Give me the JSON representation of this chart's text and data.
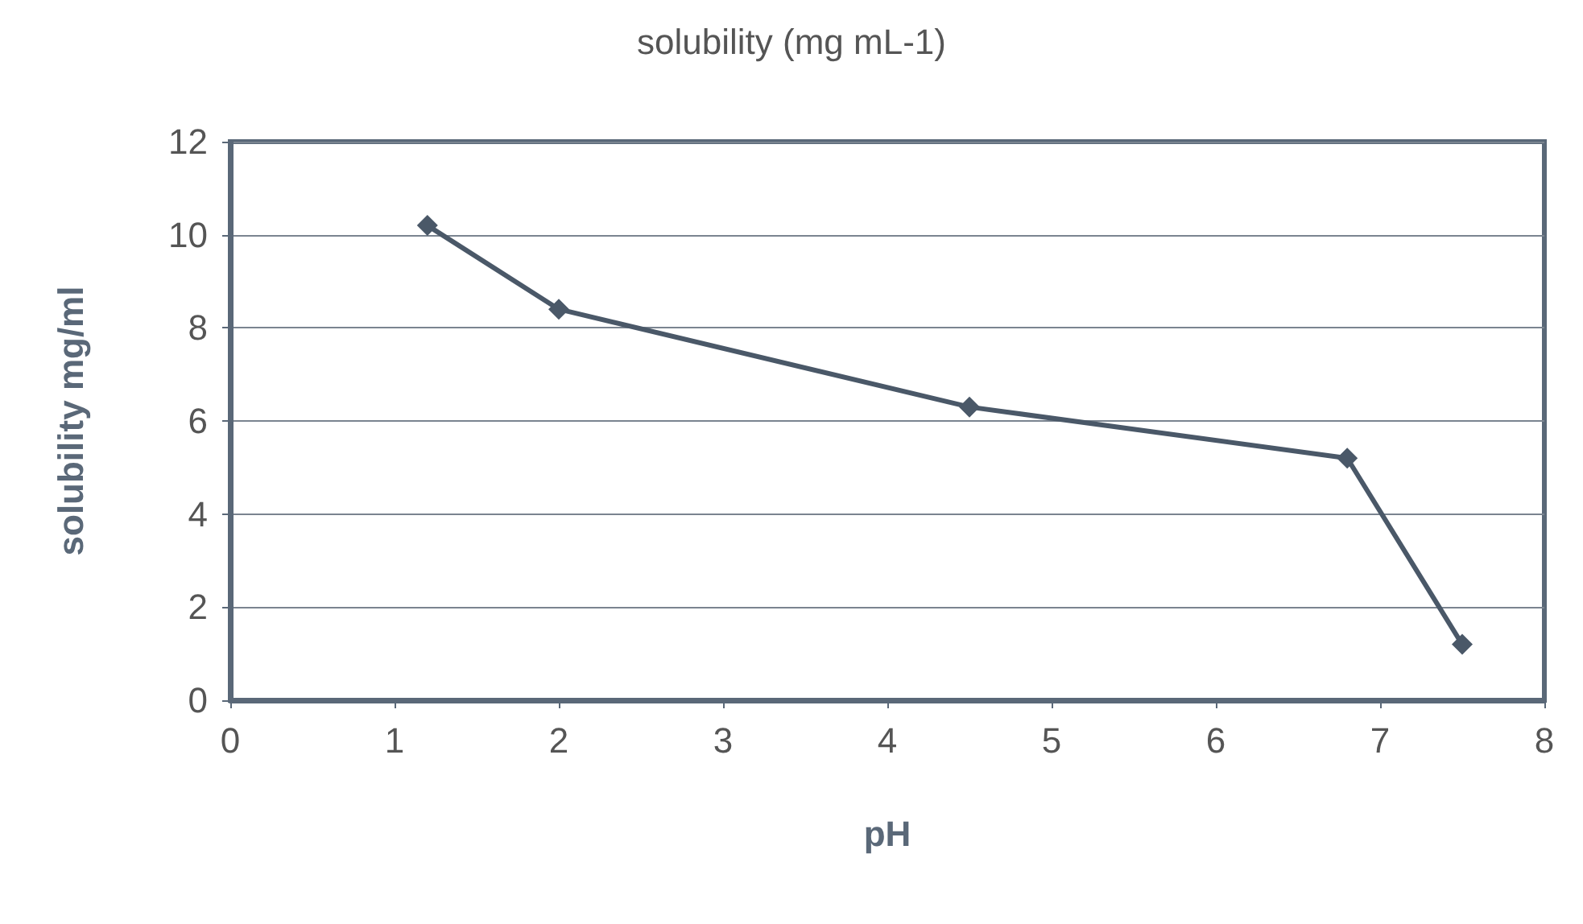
{
  "chart_data": {
    "type": "line",
    "title": "solubility (mg mL-1)",
    "xlabel": "pH",
    "ylabel": "solubility mg/ml",
    "x": [
      1.2,
      2,
      4.5,
      6.8,
      7.5
    ],
    "series": [
      {
        "color": "#4a5868",
        "values": [
          10.2,
          8.4,
          6.3,
          5.2,
          1.2
        ]
      }
    ],
    "xlim": [
      0,
      8
    ],
    "xticks": [
      0,
      1,
      2,
      3,
      4,
      5,
      6,
      7,
      8
    ],
    "ylim": [
      0,
      12
    ],
    "yticks": [
      0,
      2,
      4,
      6,
      8,
      10,
      12
    ],
    "grid": "y",
    "marker": "diamond",
    "line_style": "solid"
  }
}
